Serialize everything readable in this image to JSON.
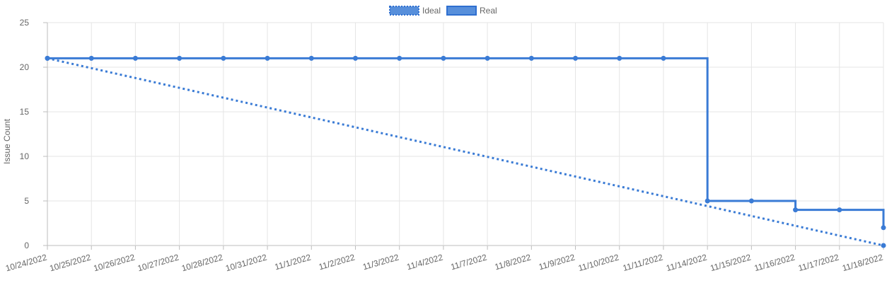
{
  "chart_data": {
    "type": "line",
    "ylabel": "Issue Count",
    "ylim": [
      0,
      25
    ],
    "yticks": [
      0,
      5,
      10,
      15,
      20,
      25
    ],
    "grid": true,
    "legend_position": "top-center",
    "categories": [
      "10/24/2022",
      "10/25/2022",
      "10/26/2022",
      "10/27/2022",
      "10/28/2022",
      "10/31/2022",
      "11/1/2022",
      "11/2/2022",
      "11/3/2022",
      "11/4/2022",
      "11/7/2022",
      "11/8/2022",
      "11/9/2022",
      "11/10/2022",
      "11/11/2022",
      "11/14/2022",
      "11/15/2022",
      "11/16/2022",
      "11/17/2022",
      "11/18/2022"
    ],
    "series": [
      {
        "name": "Ideal",
        "style": "dotted",
        "color": "#3a7bd5",
        "points": [
          {
            "x": "10/24/2022",
            "y": 21
          },
          {
            "x": "11/18/2022",
            "y": 0
          }
        ]
      },
      {
        "name": "Real",
        "style": "stepped",
        "color": "#3a7bd5",
        "values": [
          21,
          21,
          21,
          21,
          21,
          21,
          21,
          21,
          21,
          21,
          21,
          21,
          21,
          21,
          21,
          5,
          5,
          4,
          4,
          2
        ]
      }
    ]
  }
}
